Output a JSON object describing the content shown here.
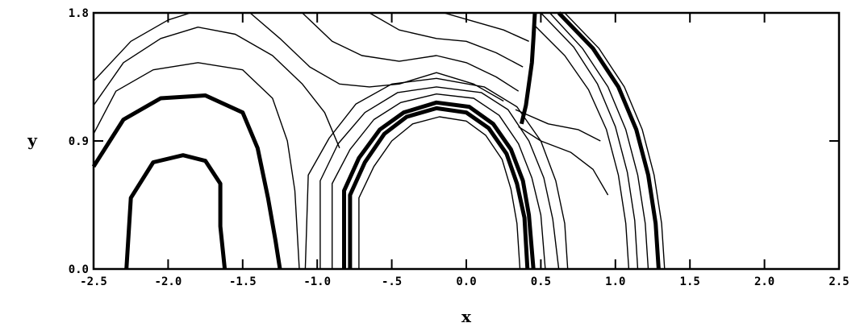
{
  "chart_data": {
    "type": "contour",
    "title": "",
    "xlabel": "x",
    "ylabel": "y",
    "xlim": [
      -2.5,
      2.5
    ],
    "ylim": [
      0.0,
      1.8
    ],
    "x_ticks": [
      -2.5,
      -2.0,
      -1.5,
      -1.0,
      -0.5,
      0.0,
      0.5,
      1.0,
      1.5,
      2.0,
      2.5
    ],
    "x_tick_labels": [
      "-2.5",
      "-2.0",
      "-1.5",
      "-1.0",
      "-.5",
      "0.0",
      "0.5",
      "1.0",
      "1.5",
      "2.0",
      "2.5"
    ],
    "y_ticks": [
      0.0,
      0.9,
      1.8
    ],
    "y_tick_labels": [
      "0.0",
      "0.9",
      "1.8"
    ],
    "grid": false,
    "contours": [
      {
        "name": "cyl-thick-1",
        "heavy": true,
        "points": [
          [
            -0.82,
            0.0
          ],
          [
            -0.82,
            0.55
          ],
          [
            -0.72,
            0.78
          ],
          [
            -0.58,
            0.98
          ],
          [
            -0.42,
            1.1
          ],
          [
            -0.2,
            1.17
          ],
          [
            0.02,
            1.14
          ],
          [
            0.18,
            1.02
          ],
          [
            0.3,
            0.84
          ],
          [
            0.38,
            0.62
          ],
          [
            0.42,
            0.38
          ],
          [
            0.45,
            0.0
          ]
        ]
      },
      {
        "name": "cyl-thick-2",
        "heavy": true,
        "points": [
          [
            -0.78,
            0.0
          ],
          [
            -0.78,
            0.52
          ],
          [
            -0.68,
            0.75
          ],
          [
            -0.55,
            0.95
          ],
          [
            -0.4,
            1.07
          ],
          [
            -0.2,
            1.13
          ],
          [
            0.0,
            1.1
          ],
          [
            0.15,
            0.99
          ],
          [
            0.27,
            0.81
          ],
          [
            0.34,
            0.6
          ],
          [
            0.39,
            0.36
          ],
          [
            0.41,
            0.0
          ]
        ]
      },
      {
        "name": "cyl-inner",
        "heavy": false,
        "points": [
          [
            -0.72,
            0.0
          ],
          [
            -0.72,
            0.5
          ],
          [
            -0.62,
            0.72
          ],
          [
            -0.5,
            0.9
          ],
          [
            -0.36,
            1.02
          ],
          [
            -0.18,
            1.07
          ],
          [
            0.0,
            1.04
          ],
          [
            0.13,
            0.94
          ],
          [
            0.24,
            0.77
          ],
          [
            0.3,
            0.56
          ],
          [
            0.34,
            0.32
          ],
          [
            0.36,
            0.0
          ]
        ]
      },
      {
        "name": "cyl-outer-1",
        "heavy": false,
        "points": [
          [
            -0.9,
            0.0
          ],
          [
            -0.9,
            0.6
          ],
          [
            -0.78,
            0.84
          ],
          [
            -0.62,
            1.05
          ],
          [
            -0.44,
            1.17
          ],
          [
            -0.2,
            1.23
          ],
          [
            0.05,
            1.2
          ],
          [
            0.22,
            1.08
          ],
          [
            0.35,
            0.88
          ],
          [
            0.44,
            0.64
          ],
          [
            0.5,
            0.38
          ],
          [
            0.53,
            0.0
          ]
        ]
      },
      {
        "name": "cyl-outer-2",
        "heavy": false,
        "points": [
          [
            -0.98,
            0.0
          ],
          [
            -0.98,
            0.62
          ],
          [
            -0.86,
            0.88
          ],
          [
            -0.68,
            1.1
          ],
          [
            -0.46,
            1.24
          ],
          [
            -0.2,
            1.28
          ],
          [
            0.1,
            1.24
          ],
          [
            0.28,
            1.12
          ],
          [
            0.42,
            0.9
          ],
          [
            0.52,
            0.64
          ],
          [
            0.58,
            0.35
          ],
          [
            0.62,
            0.0
          ]
        ]
      },
      {
        "name": "cyl-outer-3",
        "heavy": false,
        "points": [
          [
            -1.08,
            0.0
          ],
          [
            -1.06,
            0.66
          ],
          [
            -0.92,
            0.92
          ],
          [
            -0.74,
            1.16
          ],
          [
            -0.5,
            1.3
          ],
          [
            -0.2,
            1.34
          ],
          [
            0.12,
            1.28
          ],
          [
            0.34,
            1.14
          ],
          [
            0.5,
            0.9
          ],
          [
            0.6,
            0.62
          ],
          [
            0.66,
            0.32
          ],
          [
            0.68,
            0.0
          ]
        ]
      },
      {
        "name": "bow-shock-1",
        "heavy": true,
        "points": [
          [
            0.62,
            1.8
          ],
          [
            0.85,
            1.55
          ],
          [
            1.02,
            1.28
          ],
          [
            1.14,
            0.98
          ],
          [
            1.22,
            0.66
          ],
          [
            1.27,
            0.32
          ],
          [
            1.29,
            0.0
          ]
        ]
      },
      {
        "name": "bow-shock-2",
        "heavy": false,
        "points": [
          [
            0.66,
            1.8
          ],
          [
            0.89,
            1.55
          ],
          [
            1.06,
            1.28
          ],
          [
            1.18,
            0.98
          ],
          [
            1.26,
            0.66
          ],
          [
            1.31,
            0.32
          ],
          [
            1.33,
            0.0
          ]
        ]
      },
      {
        "name": "bow-shock-3",
        "heavy": false,
        "points": [
          [
            0.56,
            1.8
          ],
          [
            0.78,
            1.55
          ],
          [
            0.95,
            1.28
          ],
          [
            1.07,
            0.98
          ],
          [
            1.15,
            0.66
          ],
          [
            1.2,
            0.32
          ],
          [
            1.22,
            0.0
          ]
        ]
      },
      {
        "name": "bow-shock-4",
        "heavy": false,
        "points": [
          [
            0.5,
            1.8
          ],
          [
            0.72,
            1.56
          ],
          [
            0.88,
            1.3
          ],
          [
            1.0,
            1.0
          ],
          [
            1.08,
            0.68
          ],
          [
            1.13,
            0.34
          ],
          [
            1.15,
            0.0
          ]
        ]
      },
      {
        "name": "bow-shock-5",
        "heavy": false,
        "points": [
          [
            0.45,
            1.72
          ],
          [
            0.66,
            1.5
          ],
          [
            0.82,
            1.26
          ],
          [
            0.94,
            0.98
          ],
          [
            1.02,
            0.66
          ],
          [
            1.07,
            0.32
          ],
          [
            1.09,
            0.0
          ]
        ]
      },
      {
        "name": "slip-line",
        "heavy": true,
        "points": [
          [
            0.46,
            1.8
          ],
          [
            0.45,
            1.62
          ],
          [
            0.44,
            1.45
          ],
          [
            0.42,
            1.3
          ],
          [
            0.4,
            1.15
          ],
          [
            0.37,
            1.02
          ]
        ]
      },
      {
        "name": "wake-region-1",
        "heavy": true,
        "points": [
          [
            -2.28,
            0.0
          ],
          [
            -2.25,
            0.5
          ],
          [
            -2.1,
            0.75
          ],
          [
            -1.9,
            0.8
          ],
          [
            -1.75,
            0.76
          ],
          [
            -1.65,
            0.6
          ],
          [
            -1.65,
            0.3
          ],
          [
            -1.62,
            0.0
          ]
        ]
      },
      {
        "name": "wake-region-2",
        "heavy": true,
        "points": [
          [
            -2.5,
            0.72
          ],
          [
            -2.3,
            1.05
          ],
          [
            -2.05,
            1.2
          ],
          [
            -1.75,
            1.22
          ],
          [
            -1.5,
            1.1
          ],
          [
            -1.4,
            0.85
          ],
          [
            -1.33,
            0.5
          ],
          [
            -1.28,
            0.2
          ],
          [
            -1.25,
            0.0
          ]
        ]
      },
      {
        "name": "wake-region-3",
        "heavy": false,
        "points": [
          [
            -2.5,
            0.95
          ],
          [
            -2.35,
            1.25
          ],
          [
            -2.1,
            1.4
          ],
          [
            -1.8,
            1.45
          ],
          [
            -1.5,
            1.4
          ],
          [
            -1.3,
            1.2
          ],
          [
            -1.2,
            0.9
          ],
          [
            -1.15,
            0.55
          ],
          [
            -1.12,
            0.0
          ]
        ]
      },
      {
        "name": "upper-1",
        "heavy": false,
        "points": [
          [
            -2.5,
            1.15
          ],
          [
            -2.3,
            1.45
          ],
          [
            -2.05,
            1.62
          ],
          [
            -1.8,
            1.7
          ],
          [
            -1.55,
            1.65
          ],
          [
            -1.3,
            1.5
          ],
          [
            -1.1,
            1.3
          ],
          [
            -0.95,
            1.1
          ],
          [
            -0.85,
            0.85
          ]
        ]
      },
      {
        "name": "upper-2",
        "heavy": false,
        "points": [
          [
            -2.5,
            1.32
          ],
          [
            -2.25,
            1.6
          ],
          [
            -2.0,
            1.75
          ],
          [
            -1.85,
            1.8
          ]
        ]
      },
      {
        "name": "upper-3",
        "heavy": false,
        "points": [
          [
            -1.45,
            1.8
          ],
          [
            -1.25,
            1.62
          ],
          [
            -1.05,
            1.42
          ],
          [
            -0.85,
            1.3
          ],
          [
            -0.65,
            1.28
          ],
          [
            -0.45,
            1.3
          ],
          [
            -0.2,
            1.38
          ],
          [
            0.05,
            1.3
          ],
          [
            0.25,
            1.18
          ]
        ]
      },
      {
        "name": "upper-4",
        "heavy": false,
        "points": [
          [
            -1.1,
            1.8
          ],
          [
            -0.9,
            1.6
          ],
          [
            -0.7,
            1.5
          ],
          [
            -0.45,
            1.46
          ],
          [
            -0.2,
            1.5
          ],
          [
            0.0,
            1.45
          ],
          [
            0.2,
            1.35
          ],
          [
            0.35,
            1.25
          ]
        ]
      },
      {
        "name": "upper-5",
        "heavy": false,
        "points": [
          [
            -0.65,
            1.8
          ],
          [
            -0.45,
            1.68
          ],
          [
            -0.2,
            1.62
          ],
          [
            0.0,
            1.6
          ],
          [
            0.2,
            1.52
          ],
          [
            0.38,
            1.42
          ]
        ]
      },
      {
        "name": "upper-6",
        "heavy": false,
        "points": [
          [
            -0.15,
            1.8
          ],
          [
            0.05,
            1.74
          ],
          [
            0.25,
            1.68
          ],
          [
            0.42,
            1.6
          ]
        ]
      },
      {
        "name": "near-wake-1",
        "heavy": false,
        "points": [
          [
            0.35,
            1.0
          ],
          [
            0.5,
            0.9
          ],
          [
            0.7,
            0.82
          ],
          [
            0.85,
            0.7
          ],
          [
            0.95,
            0.52
          ]
        ]
      },
      {
        "name": "near-wake-2",
        "heavy": false,
        "points": [
          [
            0.33,
            1.12
          ],
          [
            0.55,
            1.02
          ],
          [
            0.75,
            0.98
          ],
          [
            0.9,
            0.9
          ]
        ]
      }
    ]
  }
}
